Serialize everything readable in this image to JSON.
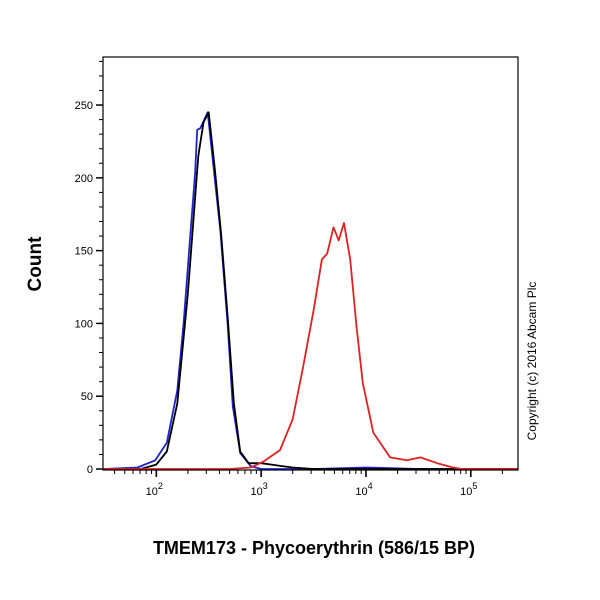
{
  "chart_data": {
    "type": "line",
    "title": "",
    "xlabel": "TMEM173 - Phycoerythrin (586/15 BP)",
    "ylabel": "Count",
    "x_scale": "log",
    "xlim": [
      31,
      282000
    ],
    "ylim": [
      0,
      283
    ],
    "x_ticks": [
      100,
      1000,
      10000,
      100000
    ],
    "x_tick_labels": [
      {
        "base": "10",
        "exp": "2"
      },
      {
        "base": "10",
        "exp": "3"
      },
      {
        "base": "10",
        "exp": "4"
      },
      {
        "base": "10",
        "exp": "5"
      }
    ],
    "y_ticks": [
      0,
      50,
      100,
      150,
      200,
      250
    ],
    "y_tick_labels": [
      "0",
      "50",
      "100",
      "150",
      "200",
      "250"
    ],
    "grid": false,
    "annotation": "Copyright (c) 2016 Abcam Plc",
    "series": [
      {
        "color": "#2222cc",
        "log10_x": [
          1.5,
          1.82,
          1.99,
          2.1,
          2.2,
          2.26,
          2.32,
          2.37,
          2.39,
          2.42,
          2.49,
          2.56,
          2.61,
          2.68,
          2.73,
          2.8,
          2.9,
          3.0,
          3.5,
          4.0,
          4.5,
          5.0,
          5.45
        ],
        "y": [
          0,
          1,
          6,
          18,
          54,
          100,
          157,
          203,
          233,
          234,
          245,
          198,
          164,
          100,
          43,
          11,
          2,
          0,
          0,
          1,
          0,
          0,
          0
        ]
      },
      {
        "color": "#000000",
        "log10_x": [
          1.5,
          1.85,
          2.0,
          2.1,
          2.2,
          2.3,
          2.4,
          2.45,
          2.5,
          2.56,
          2.62,
          2.68,
          2.74,
          2.8,
          2.88,
          3.0,
          3.1,
          3.2,
          3.3,
          3.5,
          5.45
        ],
        "y": [
          0,
          0,
          3,
          12,
          45,
          120,
          215,
          238,
          245,
          205,
          160,
          105,
          45,
          12,
          4,
          4,
          3,
          2,
          1,
          0,
          0
        ]
      },
      {
        "color": "#dd2222",
        "log10_x": [
          1.5,
          2.7,
          2.9,
          3.02,
          3.18,
          3.3,
          3.4,
          3.5,
          3.58,
          3.63,
          3.69,
          3.74,
          3.79,
          3.85,
          3.91,
          3.97,
          4.07,
          4.23,
          4.39,
          4.52,
          4.68,
          4.83,
          4.92,
          5.45
        ],
        "y": [
          0,
          0,
          1,
          5,
          13,
          34,
          70,
          109,
          144,
          148,
          166,
          157,
          169,
          144,
          98,
          59,
          25,
          8,
          6,
          8,
          4,
          1,
          0,
          0
        ]
      }
    ]
  }
}
